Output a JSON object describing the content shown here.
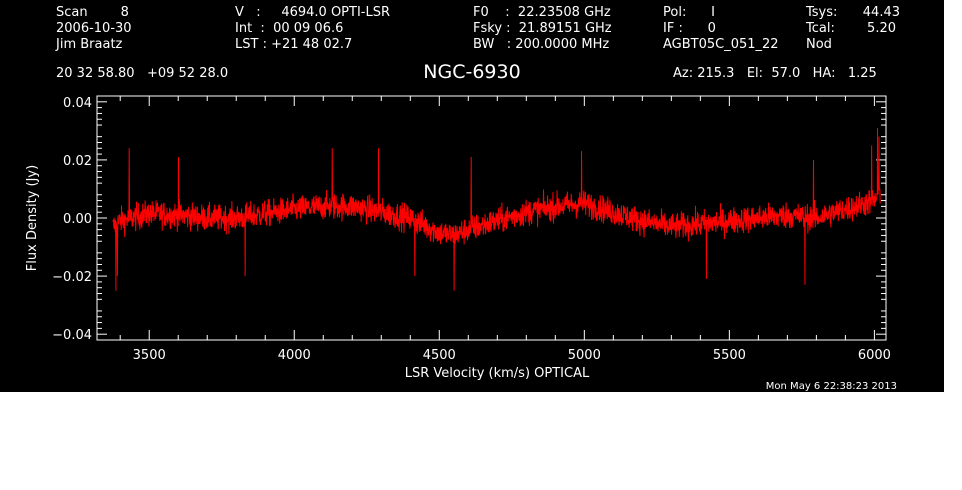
{
  "header": {
    "col1": [
      "Scan        8",
      "2006-10-30",
      "Jim Braatz"
    ],
    "col2": [
      "V   :     4694.0 OPTI-LSR",
      "Int  :  00 09 06.6",
      "LST : +21 48 02.7"
    ],
    "col3": [
      "F0    :  22.23508 GHz",
      "Fsky :  21.89151 GHz",
      "BW   : 200.0000 MHz"
    ],
    "col4": [
      "Pol:      I",
      "IF :      0",
      "AGBT05C_051_22"
    ],
    "col5": [
      "Tsys:",
      "Tcal:",
      "Nod"
    ],
    "col6": [
      "44.43",
      "5.20",
      ""
    ],
    "coords": "20 32 58.80   +09 52 28.0",
    "azelha": "Az: 215.3   El:  57.0   HA:   1.25",
    "timestamp": "Mon May  6 22:38:23 2013"
  },
  "chart_data": {
    "type": "line",
    "title": "NGC-6930",
    "xlabel": "LSR Velocity (km/s) OPTICAL",
    "ylabel": "Flux Density (Jy)",
    "xlim": [
      3320,
      6040
    ],
    "ylim": [
      -0.042,
      0.042
    ],
    "x_ticks": [
      3500,
      4000,
      4500,
      5000,
      5500,
      6000
    ],
    "x_tick_labels": [
      "3500",
      "4000",
      "4500",
      "5000",
      "5500",
      "6000"
    ],
    "y_ticks": [
      -0.04,
      -0.02,
      0.0,
      0.02,
      0.04
    ],
    "y_tick_labels": [
      "−0.04",
      "−0.02",
      "0.00",
      "0.02",
      "0.04"
    ],
    "grid": false,
    "series": [
      {
        "color": "#ff0000",
        "x_start": 3375,
        "x_end": 6020,
        "noise_amplitude": 0.0065,
        "baseline": {
          "x": [
            3375,
            3400,
            3500,
            3600,
            3700,
            3800,
            3900,
            4000,
            4100,
            4200,
            4300,
            4400,
            4500,
            4550,
            4600,
            4700,
            4800,
            4900,
            5000,
            5100,
            5200,
            5300,
            5400,
            5500,
            5600,
            5700,
            5800,
            5900,
            6000,
            6020
          ],
          "y": [
            -0.003,
            -0.001,
            0.0015,
            0.001,
            0.0,
            0.0,
            0.0015,
            0.003,
            0.004,
            0.004,
            0.002,
            0.0,
            -0.005,
            -0.006,
            -0.004,
            -0.001,
            0.002,
            0.004,
            0.005,
            0.002,
            -0.001,
            -0.003,
            -0.002,
            -0.001,
            0.0,
            0.001,
            0.0,
            0.003,
            0.006,
            0.009
          ]
        },
        "spikes": {
          "x": [
            3385,
            3390,
            3430,
            3600,
            3830,
            4130,
            4290,
            4415,
            4550,
            4610,
            4990,
            5420,
            5760,
            5790,
            5990,
            6010,
            6015
          ],
          "y": [
            -0.025,
            -0.02,
            0.024,
            0.021,
            -0.02,
            0.024,
            0.024,
            -0.02,
            -0.025,
            0.021,
            0.023,
            -0.021,
            -0.023,
            0.02,
            0.025,
            0.031,
            0.028
          ]
        }
      }
    ]
  }
}
